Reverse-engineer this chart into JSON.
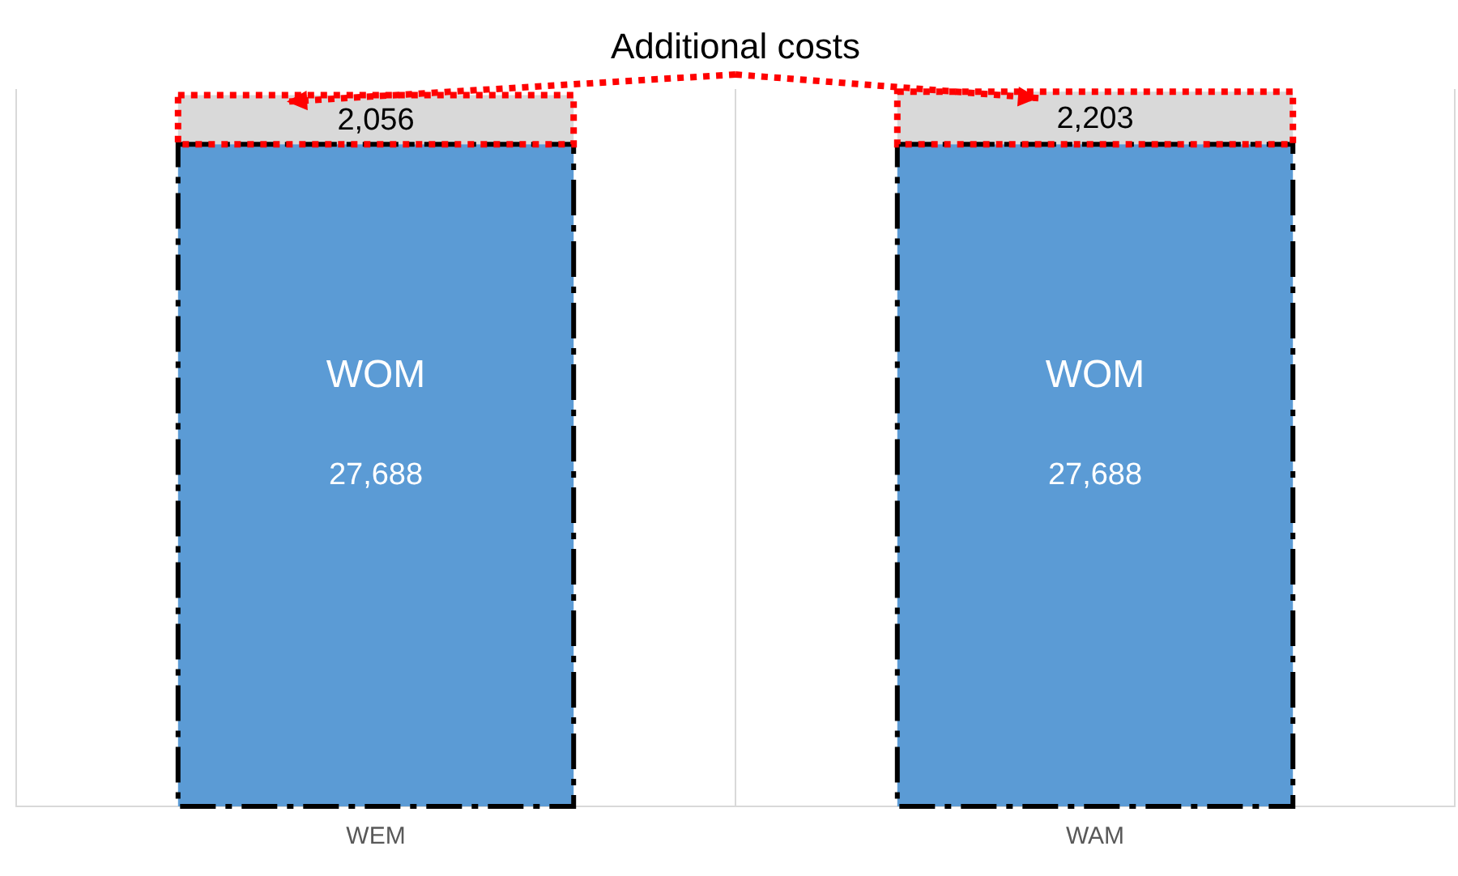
{
  "chart_data": {
    "type": "bar",
    "stacked": true,
    "categories": [
      "WEM",
      "WAM"
    ],
    "series": [
      {
        "name": "WOM",
        "color": "#5b9bd5",
        "values": [
          27688,
          27688
        ],
        "value_labels": [
          "27,688",
          "27,688"
        ]
      },
      {
        "name": "Additional costs",
        "color": "#d9d9d9",
        "values": [
          2056,
          2203
        ],
        "value_labels": [
          "2,056",
          "2,203"
        ]
      }
    ],
    "tick_labels": "x",
    "grid": "x",
    "legend": false
  }
}
